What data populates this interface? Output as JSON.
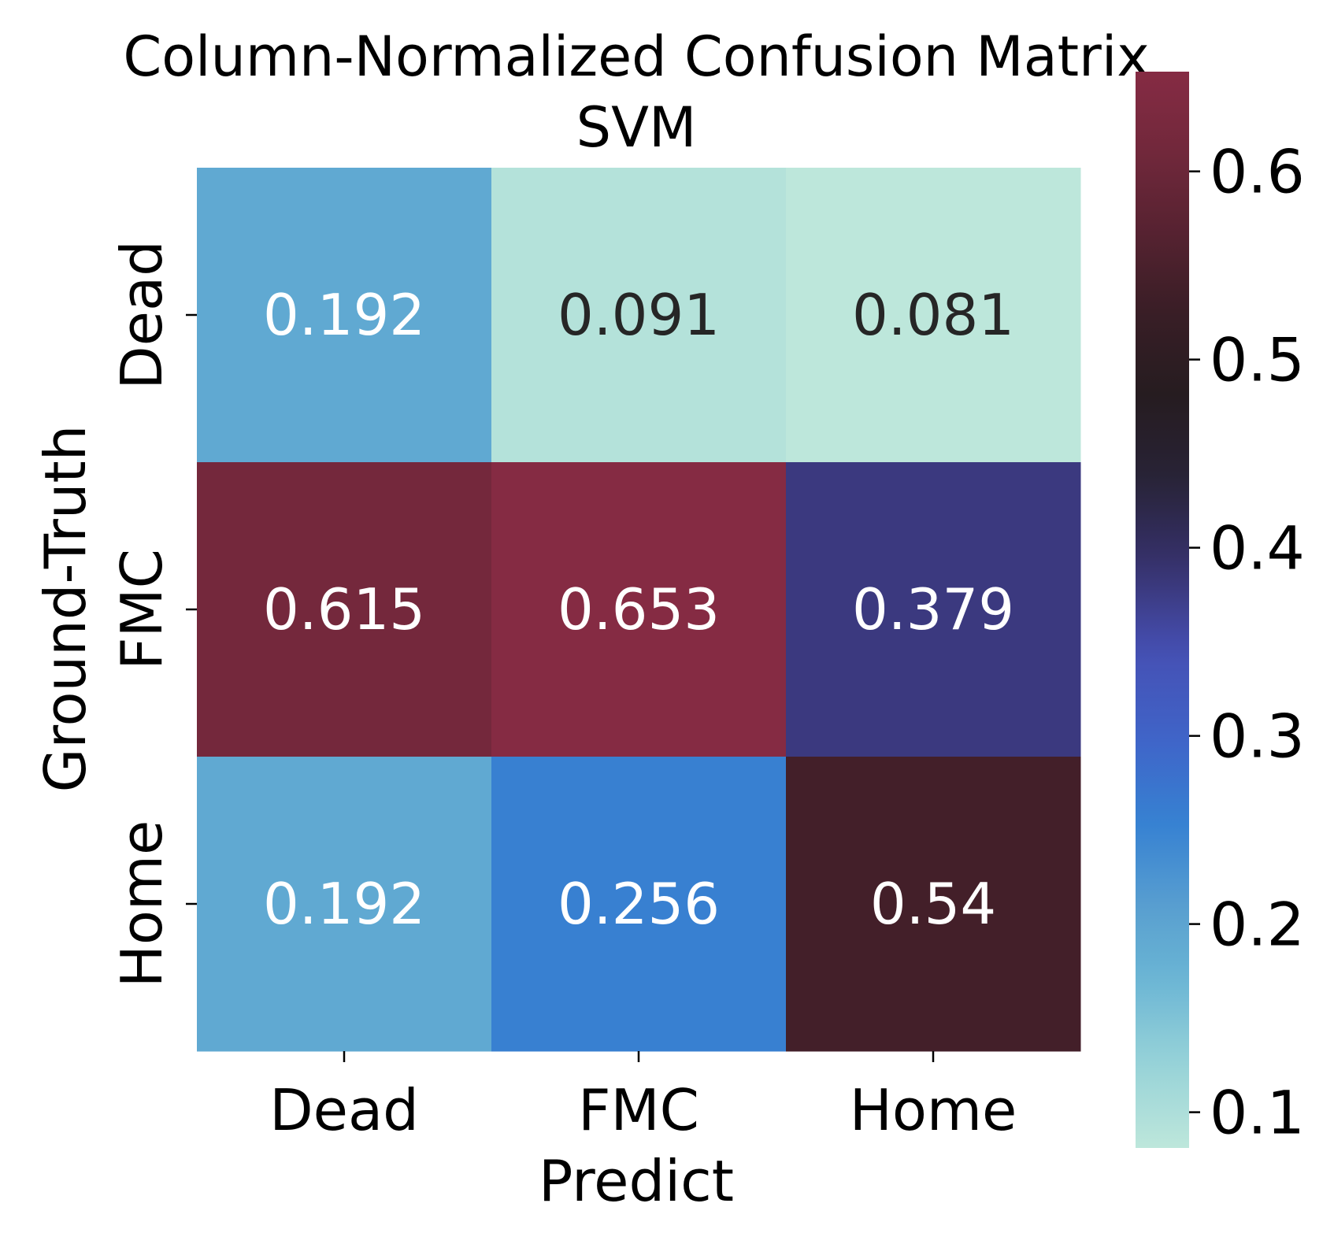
{
  "chart_data": {
    "type": "heatmap",
    "title": "Column-Normalized Confusion Matrix",
    "subtitle": "SVM",
    "xlabel": "Predict",
    "ylabel": "Ground-Truth",
    "x_categories": [
      "Dead",
      "FMC",
      "Home"
    ],
    "y_categories": [
      "Dead",
      "FMC",
      "Home"
    ],
    "values": [
      [
        0.192,
        0.091,
        0.081
      ],
      [
        0.615,
        0.653,
        0.379
      ],
      [
        0.192,
        0.256,
        0.54
      ]
    ],
    "value_labels": [
      [
        "0.192",
        "0.091",
        "0.081"
      ],
      [
        "0.615",
        "0.653",
        "0.379"
      ],
      [
        "0.192",
        "0.256",
        "0.54"
      ]
    ],
    "colorbar": {
      "range": [
        0.081,
        0.653
      ],
      "ticks": [
        0.1,
        0.2,
        0.3,
        0.4,
        0.5,
        0.6
      ],
      "tick_labels": [
        "0.1",
        "0.2",
        "0.3",
        "0.4",
        "0.5",
        "0.6"
      ],
      "colormap": "icefire"
    },
    "colors": {
      "low": "#bde7db",
      "high": "#852b43"
    },
    "grid": false,
    "legend": "colorbar-right"
  }
}
